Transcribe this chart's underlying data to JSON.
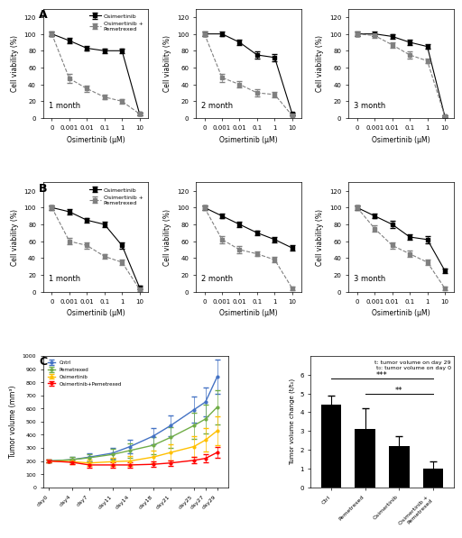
{
  "A_x_labels": [
    "0",
    "0.001",
    "0.01",
    "0.1",
    "1",
    "10"
  ],
  "A_x_vals": [
    0,
    1,
    2,
    3,
    4,
    5
  ],
  "A1_osimertinib": [
    100,
    92,
    83,
    80,
    80,
    5
  ],
  "A1_combo": [
    100,
    47,
    35,
    25,
    20,
    5
  ],
  "A2_osimertinib": [
    100,
    100,
    90,
    75,
    72,
    5
  ],
  "A2_combo": [
    100,
    48,
    40,
    30,
    28,
    3
  ],
  "A3_osimertinib": [
    100,
    100,
    97,
    90,
    85,
    2
  ],
  "A3_combo": [
    100,
    98,
    87,
    75,
    68,
    2
  ],
  "B1_osimertinib": [
    100,
    95,
    85,
    80,
    55,
    5
  ],
  "B1_combo": [
    100,
    60,
    55,
    42,
    35,
    3
  ],
  "B2_osimertinib": [
    100,
    90,
    80,
    70,
    62,
    52
  ],
  "B2_combo": [
    100,
    62,
    50,
    45,
    38,
    4
  ],
  "B3_osimertinib": [
    100,
    90,
    80,
    65,
    62,
    25
  ],
  "B3_combo": [
    100,
    75,
    55,
    45,
    35,
    4
  ],
  "A1_osimertinib_err": [
    3,
    3,
    3,
    3,
    3,
    2
  ],
  "A1_combo_err": [
    3,
    5,
    4,
    3,
    3,
    2
  ],
  "A2_osimertinib_err": [
    3,
    3,
    3,
    4,
    4,
    2
  ],
  "A2_combo_err": [
    3,
    5,
    4,
    4,
    3,
    1
  ],
  "A3_osimertinib_err": [
    3,
    3,
    3,
    3,
    3,
    1
  ],
  "A3_combo_err": [
    3,
    3,
    3,
    4,
    3,
    1
  ],
  "B1_osimertinib_err": [
    3,
    3,
    3,
    3,
    4,
    2
  ],
  "B1_combo_err": [
    3,
    4,
    4,
    3,
    3,
    2
  ],
  "B2_osimertinib_err": [
    3,
    3,
    3,
    3,
    3,
    3
  ],
  "B2_combo_err": [
    3,
    4,
    4,
    3,
    3,
    2
  ],
  "B3_osimertinib_err": [
    3,
    3,
    4,
    3,
    4,
    3
  ],
  "B3_combo_err": [
    3,
    4,
    4,
    4,
    3,
    2
  ],
  "C_days": [
    0,
    4,
    7,
    11,
    14,
    18,
    21,
    25,
    27,
    29
  ],
  "C_ctrl": [
    200,
    210,
    230,
    260,
    310,
    390,
    470,
    590,
    650,
    840
  ],
  "C_ctrl_err": [
    10,
    20,
    30,
    40,
    50,
    60,
    80,
    100,
    110,
    130
  ],
  "C_pem": [
    200,
    210,
    225,
    250,
    280,
    320,
    380,
    470,
    520,
    610
  ],
  "C_pem_err": [
    10,
    20,
    30,
    40,
    55,
    65,
    80,
    100,
    110,
    130
  ],
  "C_osi": [
    200,
    195,
    185,
    195,
    200,
    230,
    265,
    310,
    360,
    430
  ],
  "C_osi_err": [
    10,
    20,
    25,
    30,
    40,
    50,
    60,
    80,
    90,
    110
  ],
  "C_combo": [
    200,
    190,
    170,
    170,
    170,
    175,
    185,
    205,
    220,
    265
  ],
  "C_combo_err": [
    10,
    15,
    20,
    20,
    20,
    20,
    20,
    25,
    30,
    40
  ],
  "bar_cats": [
    "Ctrl",
    "Pemetrexed",
    "Osimertinib",
    "Osimertinib +\nPemetrexed"
  ],
  "bar_vals": [
    4.4,
    3.1,
    2.2,
    1.0
  ],
  "bar_errs": [
    0.5,
    1.1,
    0.5,
    0.4
  ],
  "color_black": "#000000",
  "color_gray": "#808080",
  "color_ctrl": "#4472C4",
  "color_pem": "#70AD47",
  "color_osi": "#FFC000",
  "color_combo": "#FF0000"
}
